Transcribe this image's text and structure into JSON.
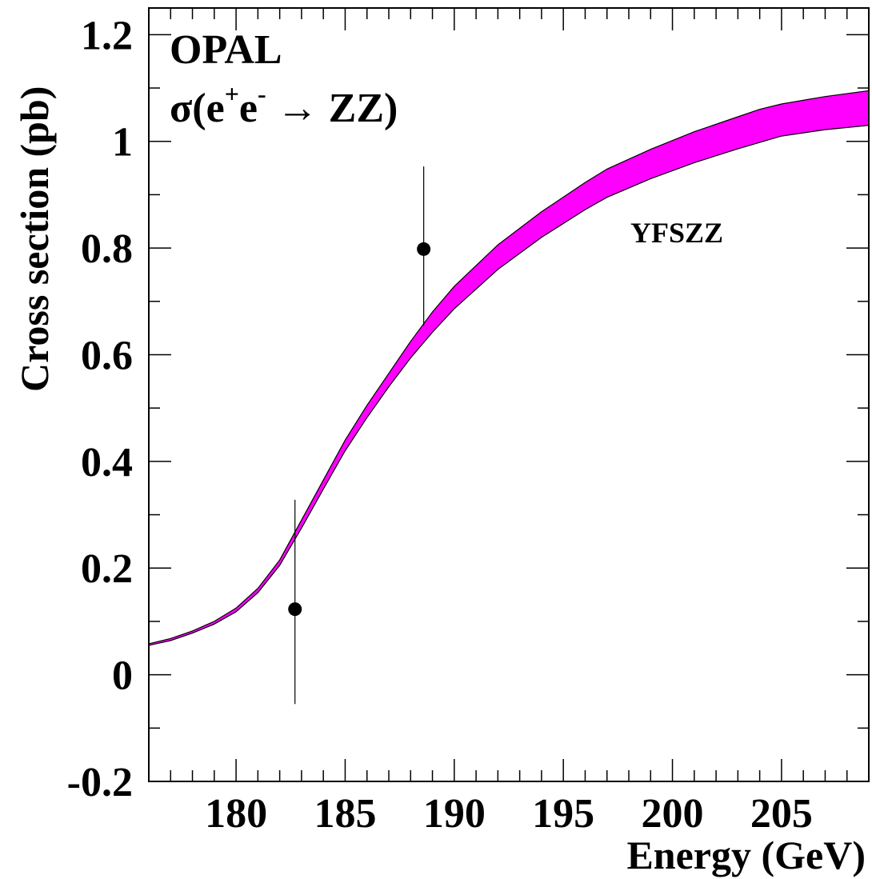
{
  "chart_data": {
    "type": "line",
    "title": "OPAL",
    "subtitle": {
      "sigma": "σ(e",
      "plus": "+",
      "e": "e",
      "minus": "-",
      "arrow": " → ZZ)"
    },
    "xlabel": "Energy (GeV)",
    "ylabel": "Cross section (pb)",
    "xlim": [
      176,
      209
    ],
    "ylim": [
      -0.2,
      1.25
    ],
    "x_ticks": [
      180,
      185,
      190,
      195,
      200,
      205
    ],
    "x_tick_labels": [
      "180",
      "185",
      "190",
      "195",
      "200",
      "205"
    ],
    "y_ticks": [
      -0.2,
      0,
      0.2,
      0.4,
      0.6,
      0.8,
      1,
      1.2
    ],
    "y_tick_labels": [
      "-0.2",
      "0",
      "0.2",
      "0.4",
      "0.6",
      "0.8",
      "1",
      "1.2"
    ],
    "grid": false,
    "band": {
      "name": "YFSZZ",
      "color": "#ff00ff",
      "x": [
        176,
        177,
        178,
        179,
        180,
        181,
        182,
        183,
        184,
        185,
        186,
        187,
        188,
        189,
        190,
        192,
        194,
        196,
        197,
        199,
        201,
        203,
        204,
        205,
        207,
        209
      ],
      "upper": [
        0.058,
        0.068,
        0.082,
        0.1,
        0.125,
        0.162,
        0.215,
        0.29,
        0.365,
        0.44,
        0.505,
        0.565,
        0.625,
        0.68,
        0.728,
        0.806,
        0.868,
        0.923,
        0.948,
        0.985,
        1.018,
        1.046,
        1.06,
        1.07,
        1.084,
        1.095
      ],
      "lower": [
        0.055,
        0.064,
        0.078,
        0.095,
        0.118,
        0.154,
        0.205,
        0.275,
        0.348,
        0.42,
        0.482,
        0.54,
        0.594,
        0.642,
        0.686,
        0.76,
        0.82,
        0.872,
        0.895,
        0.93,
        0.96,
        0.986,
        0.998,
        1.01,
        1.022,
        1.03
      ]
    },
    "points": [
      {
        "x": 182.7,
        "y": 0.123,
        "ymin": -0.055,
        "ymax": 0.328
      },
      {
        "x": 188.6,
        "y": 0.798,
        "ymin": 0.655,
        "ymax": 0.953
      }
    ]
  }
}
